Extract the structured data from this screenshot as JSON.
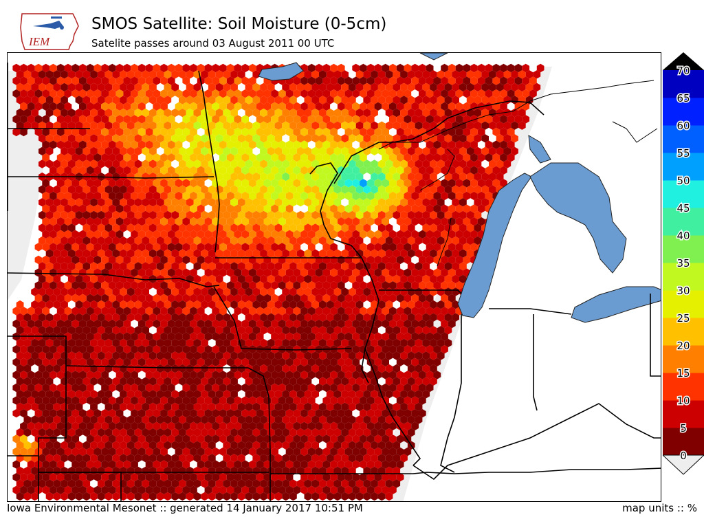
{
  "header": {
    "logo_text": "IEM",
    "title": "SMOS Satellite: Soil Moisture (0-5cm)",
    "subtitle": "Satelite passes around 03 August 2011 00 UTC"
  },
  "footer": {
    "credit": "Iowa Environmental Mesonet :: generated 14 January 2017 10:51 PM",
    "units": "map units :: %"
  },
  "colors": {
    "water": "#6a9bd1",
    "nodata": "#eeeeee",
    "border": "#000000"
  },
  "colorbar": {
    "ticks": [
      "70",
      "65",
      "60",
      "55",
      "50",
      "45",
      "40",
      "35",
      "30",
      "25",
      "20",
      "15",
      "10",
      "5",
      "0"
    ],
    "bins": [
      {
        "range": "0-5",
        "color": "#800000"
      },
      {
        "range": "5-10",
        "color": "#cc0000"
      },
      {
        "range": "10-15",
        "color": "#ff3300"
      },
      {
        "range": "15-20",
        "color": "#ff8000"
      },
      {
        "range": "20-25",
        "color": "#ffc000"
      },
      {
        "range": "25-30",
        "color": "#e5f000"
      },
      {
        "range": "30-35",
        "color": "#c0f820"
      },
      {
        "range": "35-40",
        "color": "#80f050"
      },
      {
        "range": "40-45",
        "color": "#40f0a0"
      },
      {
        "range": "45-50",
        "color": "#20f0e0"
      },
      {
        "range": "50-55",
        "color": "#00a0ff"
      },
      {
        "range": "55-60",
        "color": "#0060ff"
      },
      {
        "range": "60-65",
        "color": "#0020ff"
      },
      {
        "range": "65-70",
        "color": "#0000c0"
      }
    ],
    "over_color": "#000000",
    "under_color": "#eeeeee"
  }
}
